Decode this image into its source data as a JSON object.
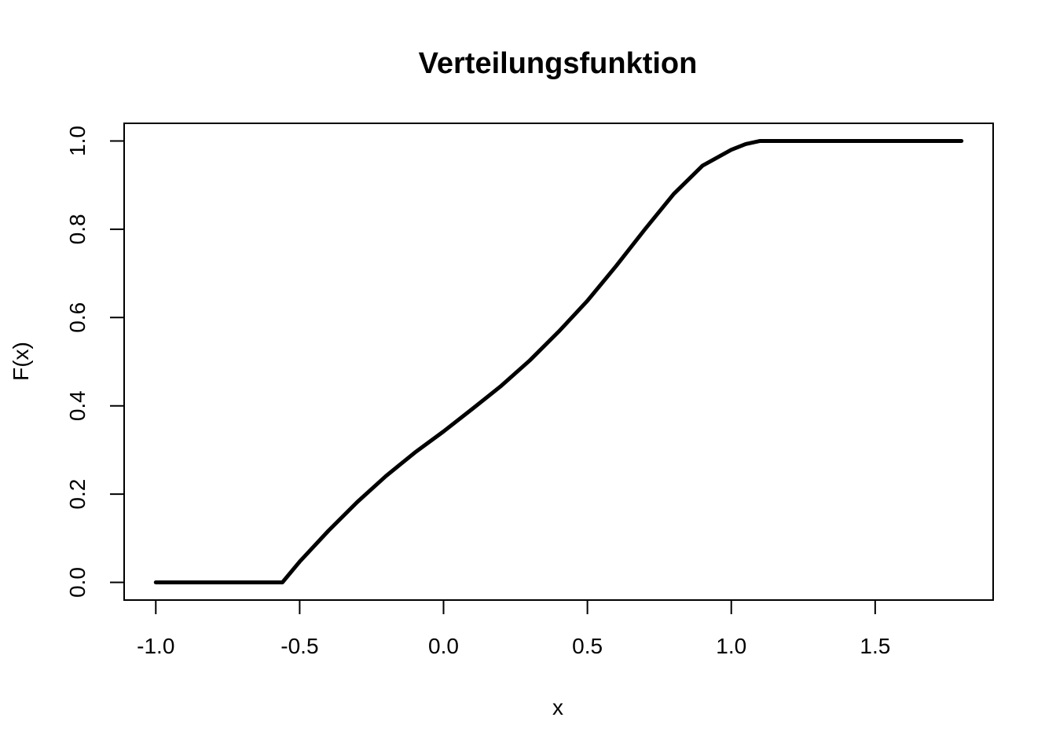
{
  "chart_data": {
    "type": "line",
    "title": "Verteilungsfunktion",
    "xlabel": "x",
    "ylabel": "F(x)",
    "xlim": [
      -1.11,
      1.91
    ],
    "ylim": [
      -0.04,
      1.04
    ],
    "xticks": [
      -1.0,
      -0.5,
      0.0,
      0.5,
      1.0,
      1.5
    ],
    "xtick_labels": [
      "-1.0",
      "-0.5",
      "0.0",
      "0.5",
      "1.0",
      "1.5"
    ],
    "yticks": [
      0.0,
      0.2,
      0.4,
      0.6,
      0.8,
      1.0
    ],
    "ytick_labels": [
      "0.0",
      "0.2",
      "0.4",
      "0.6",
      "0.8",
      "1.0"
    ],
    "grid": false,
    "series": [
      {
        "color": "#000000",
        "x": [
          -1.0,
          -0.56,
          -0.5,
          -0.4,
          -0.3,
          -0.2,
          -0.1,
          0.0,
          0.1,
          0.2,
          0.3,
          0.4,
          0.5,
          0.6,
          0.7,
          0.8,
          0.9,
          1.0,
          1.05,
          1.1,
          1.8
        ],
        "y": [
          0.0,
          0.0,
          0.047,
          0.117,
          0.182,
          0.241,
          0.294,
          0.342,
          0.393,
          0.445,
          0.503,
          0.568,
          0.638,
          0.717,
          0.8,
          0.88,
          0.944,
          0.98,
          0.993,
          1.0,
          1.0
        ]
      }
    ]
  }
}
